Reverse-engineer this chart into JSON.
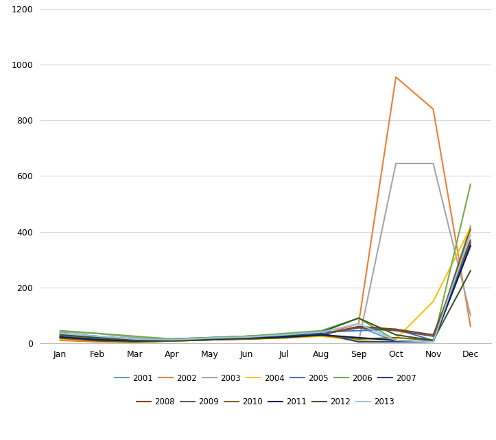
{
  "months": [
    "Jan",
    "Feb",
    "Mar",
    "Apr",
    "May",
    "Jun",
    "Jul",
    "Aug",
    "Sep",
    "Oct",
    "Nov",
    "Dec"
  ],
  "series": {
    "2001": [
      20,
      10,
      5,
      10,
      15,
      20,
      25,
      30,
      60,
      5,
      5,
      420
    ],
    "2002": [
      10,
      5,
      3,
      8,
      12,
      15,
      20,
      30,
      70,
      955,
      840,
      60
    ],
    "2003": [
      40,
      35,
      20,
      15,
      20,
      25,
      30,
      35,
      5,
      645,
      645,
      100
    ],
    "2004": [
      15,
      8,
      5,
      8,
      12,
      15,
      18,
      25,
      10,
      15,
      150,
      415
    ],
    "2005": [
      30,
      20,
      10,
      15,
      20,
      25,
      30,
      40,
      45,
      50,
      10,
      360
    ],
    "2006": [
      45,
      35,
      25,
      15,
      20,
      25,
      35,
      45,
      90,
      10,
      5,
      570
    ],
    "2007": [
      35,
      25,
      15,
      10,
      15,
      20,
      25,
      35,
      5,
      5,
      5,
      350
    ],
    "2008": [
      20,
      10,
      5,
      8,
      12,
      15,
      20,
      30,
      60,
      50,
      30,
      370
    ],
    "2009": [
      25,
      15,
      8,
      10,
      15,
      18,
      22,
      32,
      55,
      45,
      25,
      360
    ],
    "2010": [
      18,
      8,
      5,
      8,
      12,
      15,
      20,
      28,
      15,
      20,
      10,
      410
    ],
    "2011": [
      22,
      12,
      8,
      10,
      14,
      18,
      22,
      30,
      20,
      10,
      5,
      350
    ],
    "2012": [
      30,
      20,
      10,
      12,
      16,
      20,
      28,
      40,
      90,
      30,
      10,
      260
    ],
    "2013": [
      35,
      25,
      15,
      12,
      18,
      22,
      30,
      40,
      70,
      10,
      5,
      390
    ]
  },
  "colors": {
    "2001": "#5B9BD5",
    "2002": "#ED7D31",
    "2003": "#A5A5A5",
    "2004": "#FFC000",
    "2005": "#4472C4",
    "2006": "#70AD47",
    "2007": "#264478",
    "2008": "#843C0C",
    "2009": "#595959",
    "2010": "#806000",
    "2011": "#002060",
    "2012": "#375623",
    "2013": "#9DC3E6"
  },
  "ylim": [
    0,
    1200
  ],
  "yticks": [
    0,
    200,
    400,
    600,
    800,
    1000,
    1200
  ],
  "legend_row1": [
    "2001",
    "2002",
    "2003",
    "2004",
    "2005",
    "2006",
    "2007"
  ],
  "legend_row2": [
    "2008",
    "2009",
    "2010",
    "2011",
    "2012",
    "2013"
  ],
  "grid_color": "#D9D9D9",
  "figsize": [
    7.23,
    6.41
  ],
  "dpi": 100
}
